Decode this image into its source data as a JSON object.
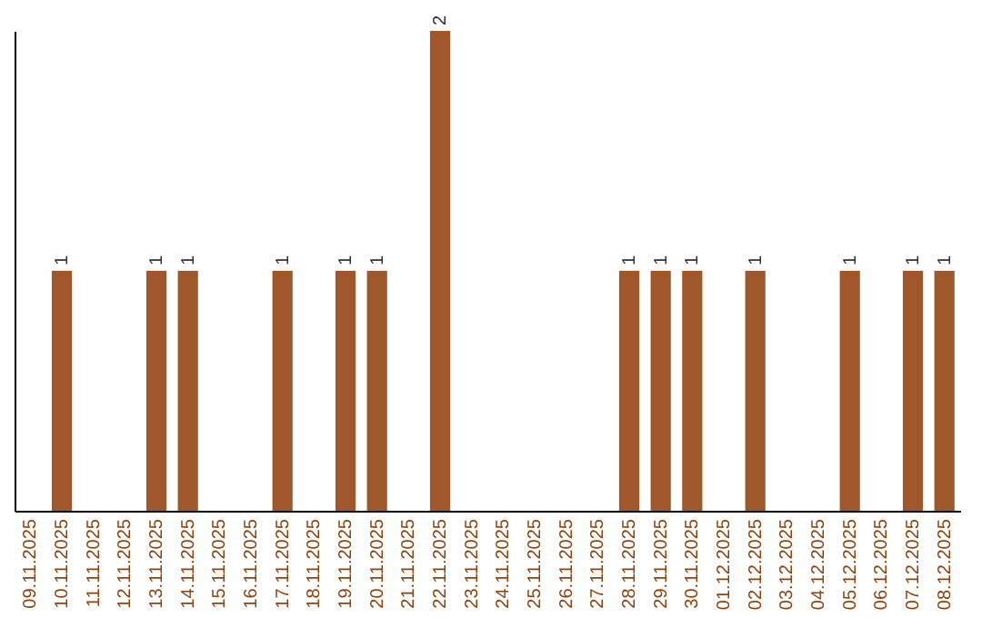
{
  "chart_data": {
    "type": "bar",
    "categories": [
      "09.11.2025",
      "10.11.2025",
      "11.11.2025",
      "12.11.2025",
      "13.11.2025",
      "14.11.2025",
      "15.11.2025",
      "16.11.2025",
      "17.11.2025",
      "18.11.2025",
      "19.11.2025",
      "20.11.2025",
      "21.11.2025",
      "22.11.2025",
      "23.11.2025",
      "24.11.2025",
      "25.11.2025",
      "26.11.2025",
      "27.11.2025",
      "28.11.2025",
      "29.11.2025",
      "30.11.2025",
      "01.12.2025",
      "02.12.2025",
      "03.12.2025",
      "04.12.2025",
      "05.12.2025",
      "06.12.2025",
      "07.12.2025",
      "08.12.2025"
    ],
    "values": [
      0,
      1,
      0,
      0,
      1,
      1,
      0,
      0,
      1,
      0,
      1,
      1,
      0,
      2,
      0,
      0,
      0,
      0,
      0,
      1,
      1,
      1,
      0,
      1,
      0,
      0,
      1,
      0,
      1,
      1
    ],
    "value_labels": [
      null,
      "1",
      null,
      null,
      "1",
      "1",
      null,
      null,
      "1",
      null,
      "1",
      "1",
      null,
      "2",
      null,
      null,
      null,
      null,
      null,
      "1",
      "1",
      "1",
      null,
      "1",
      null,
      null,
      "1",
      null,
      "1",
      "1"
    ],
    "color": "#a0582a",
    "tick_labels": "x",
    "grid": false
  }
}
